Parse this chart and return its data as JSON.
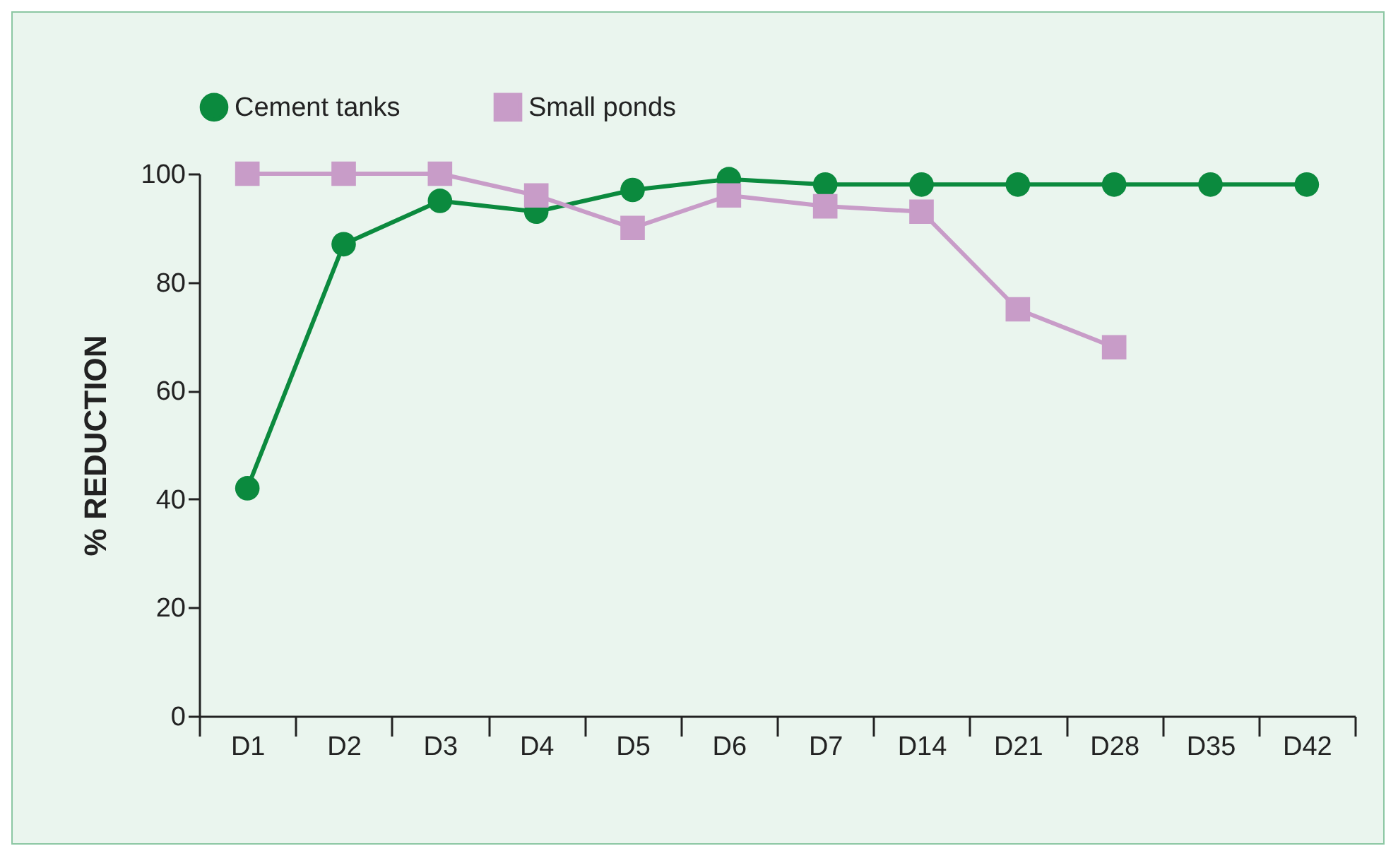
{
  "chart_data": {
    "type": "line",
    "ylabel": "% REDUCTION",
    "categories": [
      "D1",
      "D2",
      "D3",
      "D4",
      "D5",
      "D6",
      "D7",
      "D14",
      "D21",
      "D28",
      "D35",
      "D42"
    ],
    "series": [
      {
        "name": "Cement tanks",
        "color": "#0b8a3e",
        "marker": "circle",
        "values": [
          42,
          87,
          95,
          93,
          97,
          99,
          98,
          98,
          98,
          98,
          98,
          98
        ]
      },
      {
        "name": "Small ponds",
        "color": "#c89cc8",
        "marker": "square",
        "values": [
          100,
          100,
          100,
          96,
          90,
          96,
          94,
          93,
          75,
          68,
          null,
          null
        ]
      }
    ],
    "ylim": [
      0,
      100
    ],
    "yticks": [
      0,
      20,
      40,
      60,
      80,
      100
    ],
    "grid": false,
    "legend": "top"
  }
}
